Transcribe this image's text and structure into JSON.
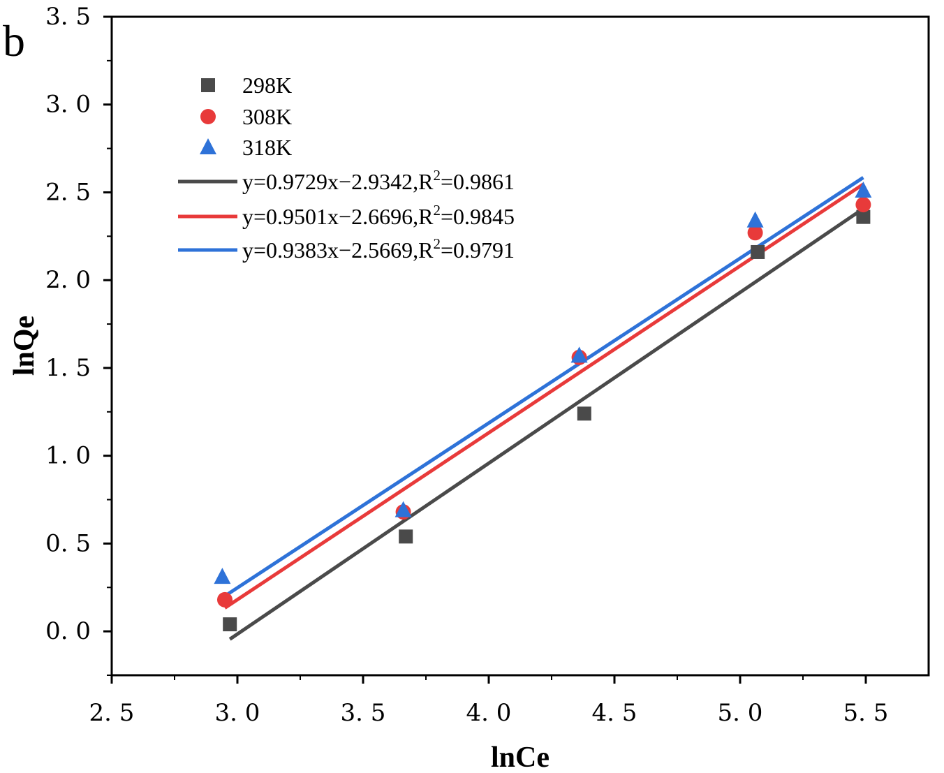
{
  "chart_data": {
    "type": "scatter",
    "panel_label": "b",
    "xlabel": "lnCe",
    "ylabel": "lnQe",
    "xlim": [
      2.5,
      5.75
    ],
    "ylim": [
      -0.25,
      3.5
    ],
    "xticks": [
      2.5,
      3.0,
      3.5,
      4.0,
      4.5,
      5.0,
      5.5
    ],
    "yticks": [
      0.0,
      0.5,
      1.0,
      1.5,
      2.0,
      2.5,
      3.0,
      3.5
    ],
    "xtick_labels": [
      "2. 5",
      "3. 0",
      "3. 5",
      "4. 0",
      "4. 5",
      "5. 0",
      "5. 5"
    ],
    "ytick_labels": [
      "0. 0",
      "0. 5",
      "1. 0",
      "1. 5",
      "2. 0",
      "2. 5",
      "3. 0",
      "3. 5"
    ],
    "grid": false,
    "legend_position": "top-left",
    "series": [
      {
        "name": "298K",
        "marker": "square",
        "color": "#4a4a4a",
        "x": [
          2.97,
          3.67,
          4.38,
          5.07,
          5.49
        ],
        "y": [
          0.04,
          0.54,
          1.24,
          2.16,
          2.36
        ]
      },
      {
        "name": "308K",
        "marker": "circle",
        "color": "#e83a3a",
        "x": [
          2.95,
          3.66,
          4.36,
          5.06,
          5.49
        ],
        "y": [
          0.18,
          0.68,
          1.56,
          2.27,
          2.43
        ]
      },
      {
        "name": "318K",
        "marker": "triangle",
        "color": "#2e72d8",
        "x": [
          2.94,
          3.66,
          4.36,
          5.06,
          5.49
        ],
        "y": [
          0.31,
          0.69,
          1.57,
          2.34,
          2.51
        ]
      }
    ],
    "fits": [
      {
        "label": "y=0.9729x−2.9342,R",
        "sup": "2",
        "r2_text": "=0.9861",
        "slope": 0.9729,
        "intercept": -2.9342,
        "x_range": [
          2.97,
          5.49
        ],
        "color": "#4a4a4a"
      },
      {
        "label": "y=0.9501x−2.6696,R",
        "sup": "2",
        "r2_text": "=0.9845",
        "slope": 0.9501,
        "intercept": -2.6696,
        "x_range": [
          2.95,
          5.49
        ],
        "color": "#e83a3a"
      },
      {
        "label": "y=0.9383x−2.5669,R",
        "sup": "2",
        "r2_text": "=0.9791",
        "slope": 0.9383,
        "intercept": -2.5669,
        "x_range": [
          2.94,
          5.49
        ],
        "color": "#2e72d8"
      }
    ]
  }
}
